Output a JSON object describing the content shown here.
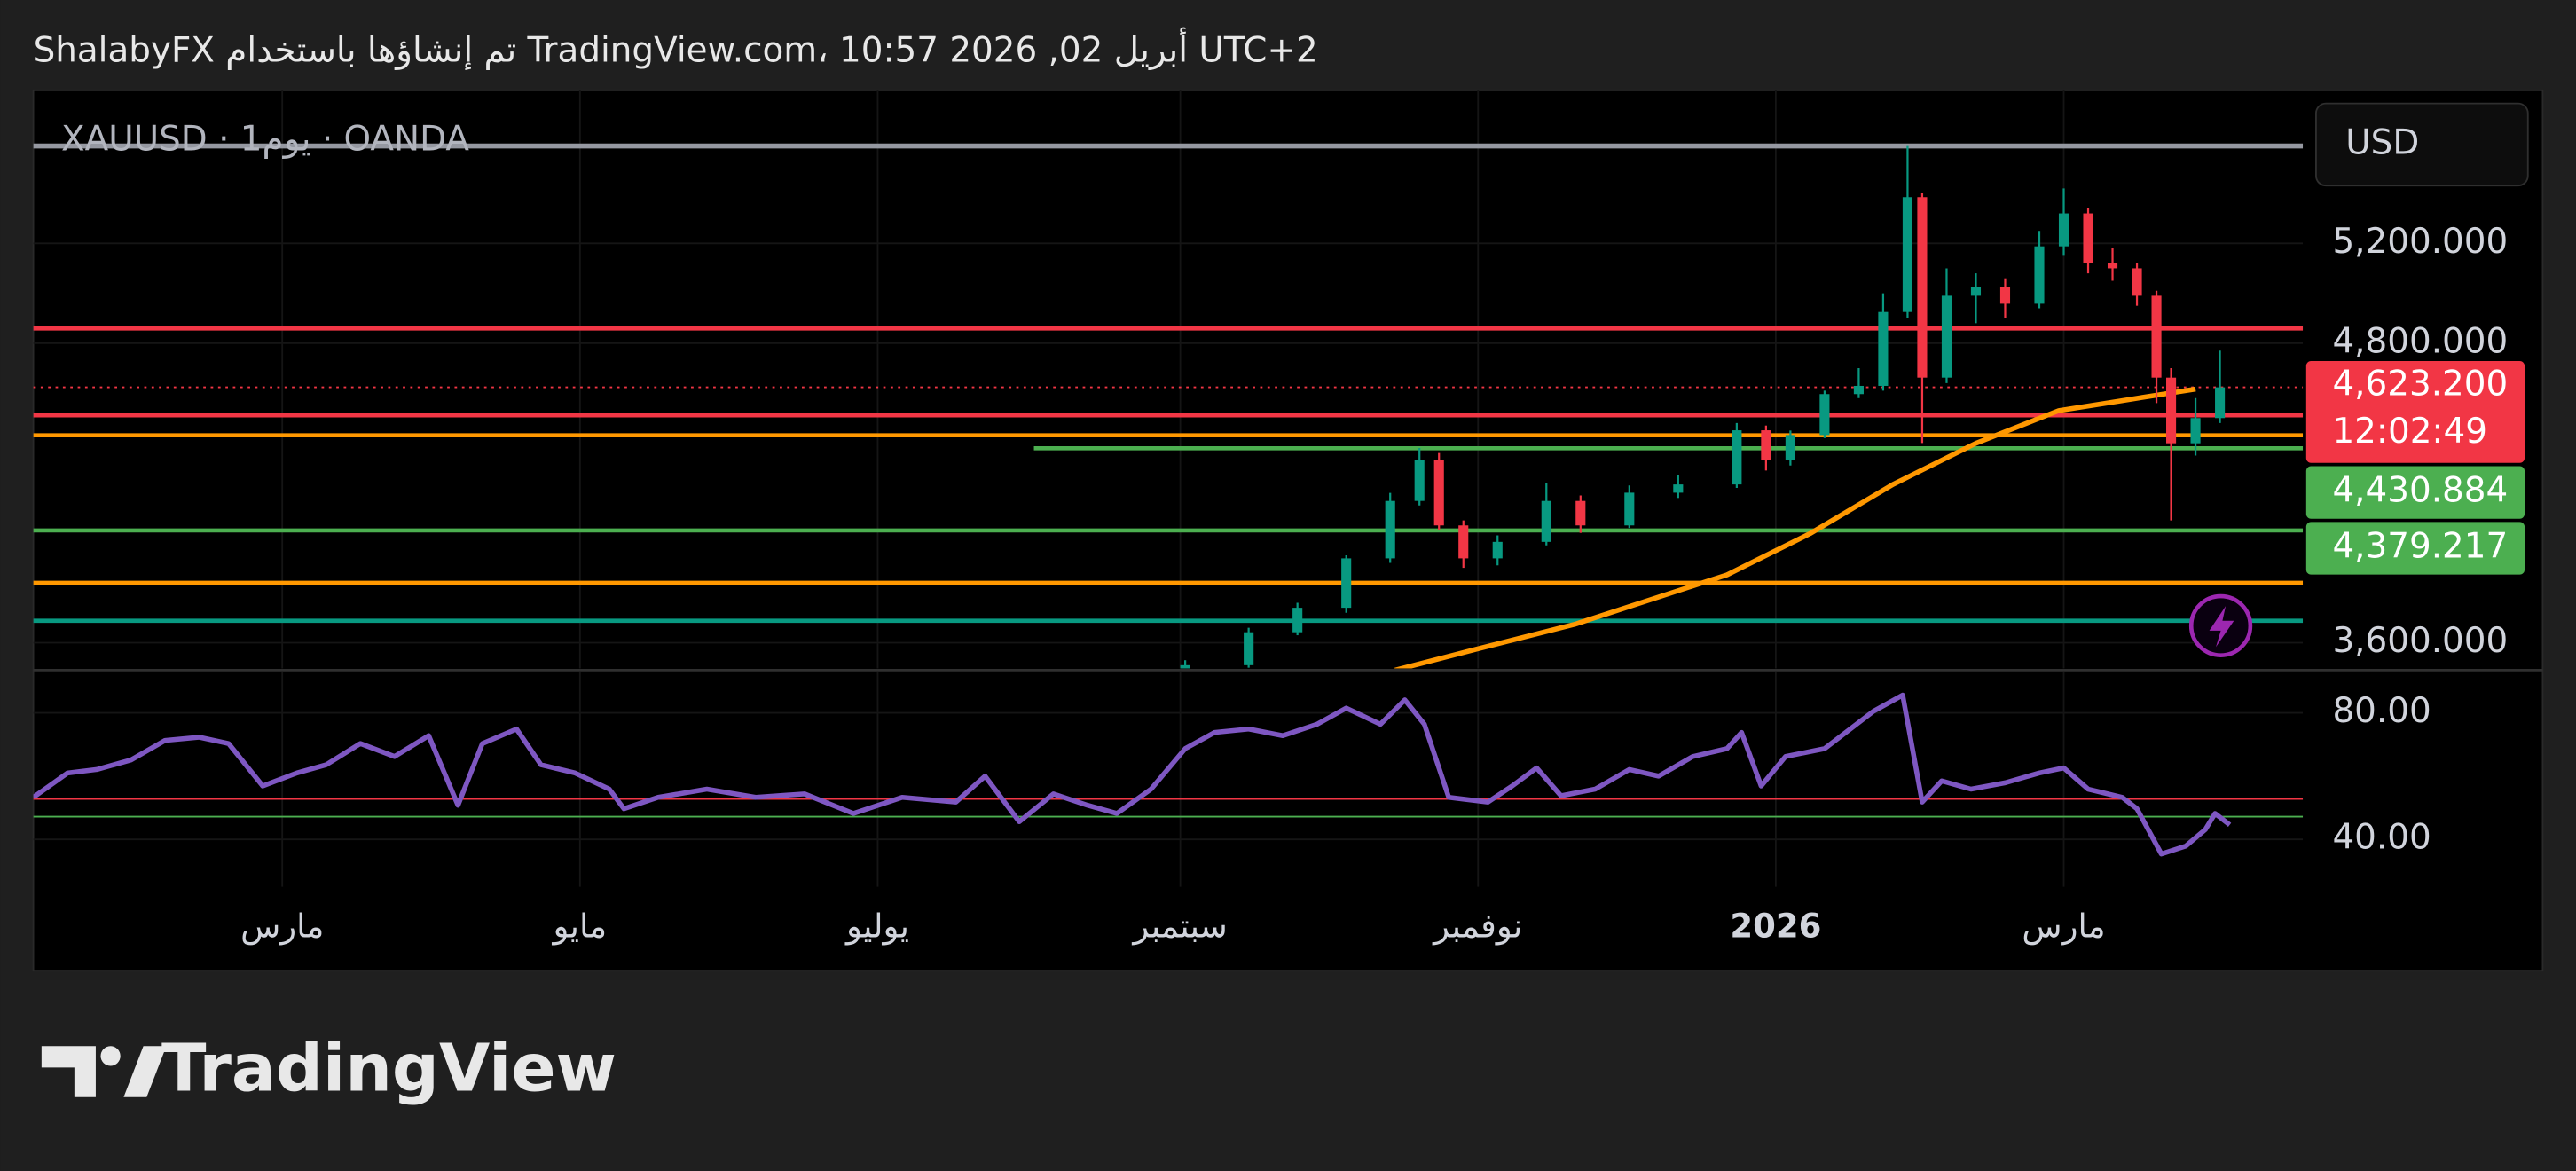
{
  "chart_data": {
    "type": "candlestick",
    "title": "ShalabyFX تم إنشاؤها باستخدام TradingView.com، 10:57 2026 ,02 أبريل UTC+2",
    "subtitle": "XAUUSD · 1يوم · OANDA",
    "currency": "USD",
    "grid": true,
    "xlim": [
      8,
      473
    ],
    "xticks": [
      {
        "value": 59,
        "label": "مارس"
      },
      {
        "value": 120,
        "label": "مايو"
      },
      {
        "value": 181,
        "label": "يوليو"
      },
      {
        "value": 243,
        "label": "سبتمبر"
      },
      {
        "value": 304,
        "label": "نوفمبر"
      },
      {
        "value": 365,
        "label": "2026"
      },
      {
        "value": 424,
        "label": "مارس"
      }
    ],
    "ylim": [
      3497,
      5813
    ],
    "yticks": [
      {
        "value": 3600,
        "label": "3,600.000"
      },
      {
        "value": 4800,
        "label": "4,800.000"
      },
      {
        "value": 5200,
        "label": "5,200.000"
      }
    ],
    "up_color": "#089981",
    "down_color": "#f23645",
    "candles": {
      "x": [
        244,
        257,
        267,
        277,
        286,
        292,
        296,
        301,
        308,
        318,
        325,
        335,
        345,
        357,
        363,
        368,
        375,
        382,
        387,
        392,
        395,
        400,
        406,
        412,
        419,
        424,
        429,
        434,
        439,
        443,
        446,
        451,
        456
      ],
      "open": [
        3480,
        3510,
        3642,
        3740,
        3938,
        4168,
        4333,
        4070,
        3938,
        4004,
        4168,
        4070,
        4201,
        4234,
        4451,
        4333,
        4432,
        4596,
        4629,
        4925,
        5385,
        4662,
        4990,
        5024,
        4958,
        5188,
        5320,
        5122,
        5100,
        4990,
        4662,
        4399,
        4500
      ],
      "high": [
        3530,
        3660,
        3760,
        3950,
        4200,
        4380,
        4360,
        4090,
        4030,
        4240,
        4190,
        4230,
        4270,
        4480,
        4470,
        4450,
        4610,
        4700,
        5000,
        5590,
        5400,
        5100,
        5080,
        5060,
        5250,
        5420,
        5340,
        5180,
        5120,
        5010,
        4700,
        4580,
        4770
      ],
      "low": [
        3470,
        3500,
        3630,
        3720,
        3920,
        4150,
        4050,
        3900,
        3910,
        3990,
        4040,
        4060,
        4180,
        4220,
        4290,
        4310,
        4420,
        4580,
        4610,
        4900,
        4400,
        4640,
        4880,
        4900,
        4940,
        5150,
        5080,
        5050,
        4950,
        4560,
        4090,
        4350,
        4480
      ],
      "close": [
        3510,
        3642,
        3740,
        3938,
        4168,
        4333,
        4070,
        3938,
        4004,
        4168,
        4070,
        4201,
        4234,
        4451,
        4333,
        4432,
        4596,
        4629,
        4925,
        5385,
        4662,
        4990,
        5024,
        4958,
        5188,
        5320,
        5122,
        5100,
        4990,
        4662,
        4399,
        4500,
        4623.2
      ]
    },
    "ma": {
      "color": "#ff9800",
      "x": [
        287,
        304,
        324,
        355,
        372,
        389,
        406,
        423,
        436,
        451
      ],
      "values": [
        3490,
        3576,
        3675,
        3872,
        4037,
        4234,
        4399,
        4530,
        4570,
        4616
      ]
    },
    "levels": [
      {
        "value": 5590,
        "color": "#9598a1"
      },
      {
        "value": 4859,
        "color": "#f23645"
      },
      {
        "value": 4511,
        "color": "#f23645"
      },
      {
        "value": 4430.884,
        "color": "#ff9800"
      },
      {
        "value": 4379.217,
        "color": "#4caf50",
        "x_start": 213
      },
      {
        "value": 4050,
        "color": "#4caf50"
      },
      {
        "value": 3840,
        "color": "#ff9800"
      },
      {
        "value": 3688,
        "color": "#089981"
      }
    ],
    "last_price": {
      "value": 4623.2,
      "label": "4,623.200",
      "countdown": "12:02:49",
      "color": "#f23645"
    },
    "price_labels": [
      {
        "value": 4430.884,
        "label": "4,430.884",
        "color": "#4caf50"
      },
      {
        "value": 4379.217,
        "label": "4,379.217",
        "color": "#4caf50"
      }
    ],
    "rsi": {
      "color": "#7e57c2",
      "ylim": [
        25,
        93
      ],
      "yticks": [
        {
          "value": 40,
          "label": "40.00"
        },
        {
          "value": 80,
          "label": "80.00"
        }
      ],
      "levels": [
        {
          "value": 52.8,
          "color": "#f23645"
        },
        {
          "value": 47.2,
          "color": "#4caf50"
        }
      ],
      "x": [
        8,
        15,
        21,
        28,
        35,
        42,
        48,
        55,
        62,
        68,
        75,
        82,
        89,
        95,
        100,
        107,
        112,
        119,
        126,
        129,
        136,
        146,
        156,
        166,
        176,
        186,
        197,
        203,
        210,
        217,
        224,
        230,
        237,
        244,
        250,
        257,
        264,
        271,
        277,
        284,
        289,
        293,
        298,
        306,
        311,
        316,
        321,
        328,
        335,
        341,
        348,
        355,
        358,
        362,
        367,
        375,
        385,
        391,
        395,
        399,
        405,
        412,
        419,
        424,
        429,
        436,
        439,
        444,
        449,
        453,
        455,
        458
      ],
      "values": [
        53.3,
        61.0,
        62.1,
        65.1,
        71.3,
        72.3,
        70.3,
        56.9,
        61.0,
        63.6,
        70.3,
        66.2,
        72.8,
        50.8,
        70.3,
        74.9,
        63.6,
        61.0,
        55.9,
        49.7,
        53.3,
        55.9,
        53.3,
        54.4,
        48.2,
        53.3,
        51.8,
        60.0,
        45.6,
        54.4,
        50.8,
        48.2,
        55.9,
        68.7,
        73.8,
        74.9,
        72.8,
        76.4,
        81.5,
        76.4,
        84.1,
        76.4,
        53.3,
        51.8,
        56.9,
        62.6,
        53.8,
        55.9,
        62.1,
        60.0,
        66.2,
        68.7,
        73.8,
        56.9,
        66.2,
        68.7,
        80.5,
        85.6,
        51.8,
        58.5,
        55.9,
        57.9,
        61.0,
        62.6,
        55.9,
        53.3,
        49.7,
        35.4,
        37.9,
        43.1,
        48.2,
        44.6
      ]
    }
  },
  "footer": {
    "brand": "TradingView"
  }
}
